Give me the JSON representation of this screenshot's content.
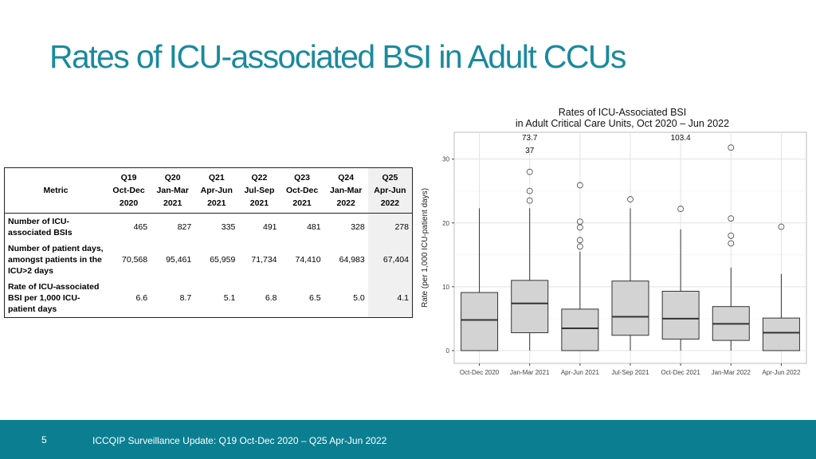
{
  "slide": {
    "title": "Rates of ICU-associated BSI in Adult CCUs",
    "page_number": "5",
    "footer": "ICCQIP Surveillance Update: Q19 Oct-Dec 2020 – Q25 Apr-Jun 2022",
    "colors": {
      "title": "#1a8a9e",
      "footer_bar": "#0b7f91",
      "box_fill": "#d3d3d3",
      "highlight_column": "#f0f0f0"
    }
  },
  "table": {
    "metric_header": "Metric",
    "columns": [
      {
        "line1": "Q19",
        "line2": "Oct-Dec",
        "line3": "2020"
      },
      {
        "line1": "Q20",
        "line2": "Jan-Mar",
        "line3": "2021"
      },
      {
        "line1": "Q21",
        "line2": "Apr-Jun",
        "line3": "2021"
      },
      {
        "line1": "Q22",
        "line2": "Jul-Sep",
        "line3": "2021"
      },
      {
        "line1": "Q23",
        "line2": "Oct-Dec",
        "line3": "2021"
      },
      {
        "line1": "Q24",
        "line2": "Jan-Mar",
        "line3": "2022"
      },
      {
        "line1": "Q25",
        "line2": "Apr-Jun",
        "line3": "2022"
      }
    ],
    "rows": [
      {
        "label": "Number of ICU-associated BSIs",
        "values": [
          "465",
          "827",
          "335",
          "491",
          "481",
          "328",
          "278"
        ]
      },
      {
        "label": "Number of patient days, amongst patients in the ICU>2 days",
        "values": [
          "70,568",
          "95,461",
          "65,959",
          "71,734",
          "74,410",
          "64,983",
          "67,404"
        ]
      },
      {
        "label": "Rate of ICU-associated BSI per 1,000 ICU-patient days",
        "values": [
          "6.6",
          "8.7",
          "5.1",
          "6.8",
          "6.5",
          "5.0",
          "4.1"
        ]
      }
    ]
  },
  "chart_data": {
    "type": "box",
    "title_line1": "Rates of ICU-Associated BSI",
    "title_line2": "in Adult Critical Care Units, Oct 2020 – Jun 2022",
    "xlabel": "",
    "ylabel": "Rate (per 1,000 ICU-patient days)",
    "ylim": [
      -2,
      34.2
    ],
    "yticks": [
      0,
      10,
      20,
      30
    ],
    "grid": true,
    "categories": [
      "Oct-Dec 2020",
      "Jan-Mar 2021",
      "Apr-Jun 2021",
      "Jul-Sep 2021",
      "Oct-Dec 2021",
      "Jan-Mar 2022",
      "Apr-Jun 2022"
    ],
    "boxes": [
      {
        "min": 0,
        "q1": 0,
        "median": 4.8,
        "q3": 9.1,
        "max": 22.3,
        "outliers": []
      },
      {
        "min": 0,
        "q1": 2.8,
        "median": 7.4,
        "q3": 11.0,
        "max": 22.3,
        "outliers": [
          23.5,
          25.0,
          28.0
        ]
      },
      {
        "min": 0,
        "q1": 0,
        "median": 3.5,
        "q3": 6.5,
        "max": 15.5,
        "outliers": [
          16.3,
          17.3,
          19.3,
          20.2,
          25.9
        ]
      },
      {
        "min": 0,
        "q1": 2.4,
        "median": 5.3,
        "q3": 10.9,
        "max": 22.3,
        "outliers": [
          23.7
        ]
      },
      {
        "min": 0,
        "q1": 1.8,
        "median": 5.0,
        "q3": 9.3,
        "max": 19.0,
        "outliers": [
          22.2
        ]
      },
      {
        "min": 0,
        "q1": 1.6,
        "median": 4.2,
        "q3": 6.9,
        "max": 13.0,
        "outliers": [
          16.8,
          18.0,
          20.7,
          31.8
        ]
      },
      {
        "min": 0,
        "q1": 0,
        "median": 2.8,
        "q3": 5.1,
        "max": 12.0,
        "outliers": [
          19.4
        ]
      }
    ],
    "annotations": [
      {
        "category_index": 1,
        "text": "73.7"
      },
      {
        "category_index": 1,
        "text": "37"
      },
      {
        "category_index": 4,
        "text": "103.4"
      }
    ]
  }
}
